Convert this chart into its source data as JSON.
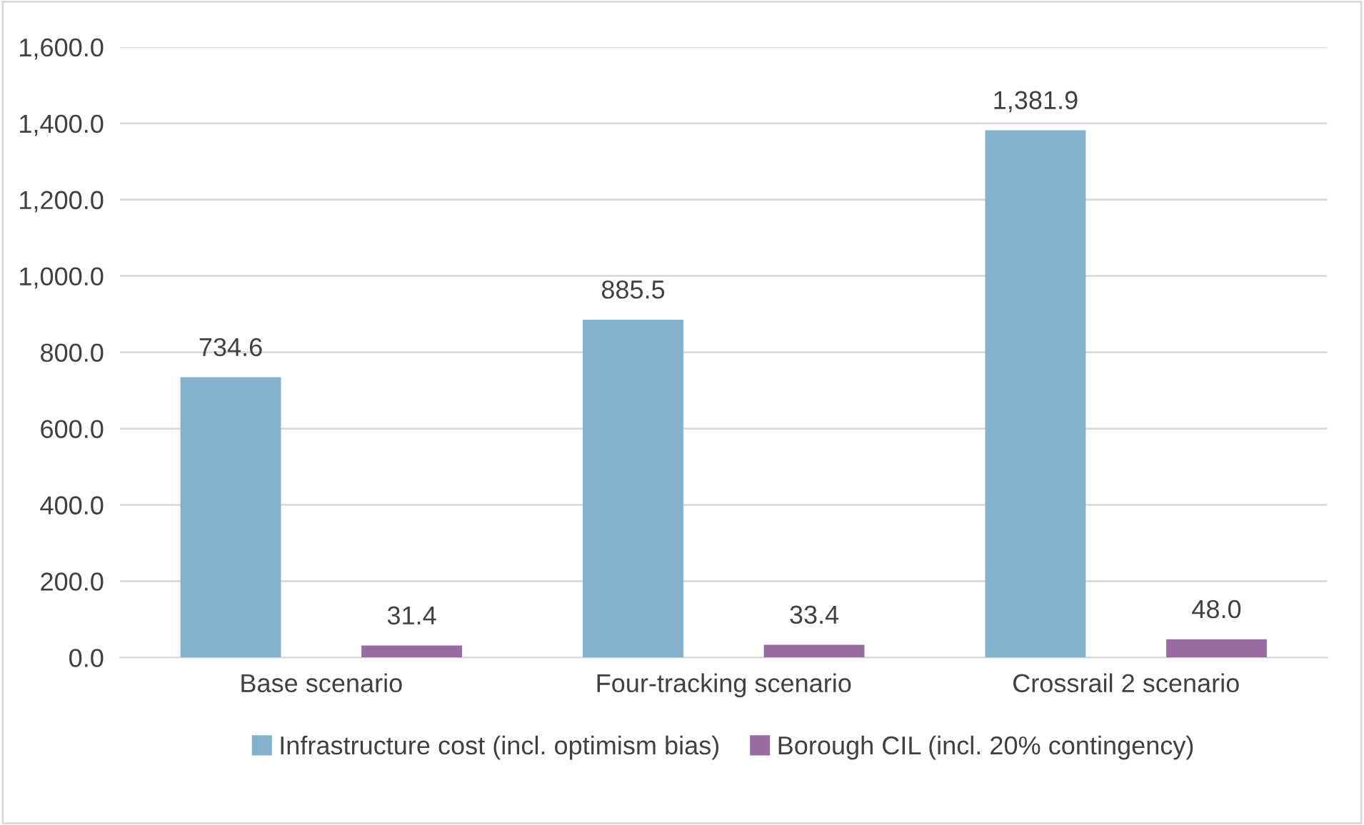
{
  "chart_data": {
    "type": "bar",
    "categories": [
      "Base scenario",
      "Four-tracking scenario",
      "Crossrail 2 scenario"
    ],
    "series": [
      {
        "name": "Infrastructure cost (incl. optimism bias)",
        "color": "#84b1cb",
        "values": [
          734.6,
          885.5,
          1381.9
        ],
        "value_labels": [
          "734.6",
          "885.5",
          "1,381.9"
        ]
      },
      {
        "name": "Borough CIL (incl. 20% contingency)",
        "color": "#9a6aa2",
        "values": [
          31.4,
          33.4,
          48.0
        ],
        "value_labels": [
          "31.4",
          "33.4",
          "48.0"
        ]
      }
    ],
    "ylim": [
      0,
      1600
    ],
    "yticks": [
      {
        "value": 0,
        "label": "0.0"
      },
      {
        "value": 200,
        "label": "200.0"
      },
      {
        "value": 400,
        "label": "400.0"
      },
      {
        "value": 600,
        "label": "600.0"
      },
      {
        "value": 800,
        "label": "800.0"
      },
      {
        "value": 1000,
        "label": "1,000.0"
      },
      {
        "value": 1200,
        "label": "1,200.0"
      },
      {
        "value": 1400,
        "label": "1,400.0"
      },
      {
        "value": 1600,
        "label": "1,600.0"
      }
    ],
    "grid": "y",
    "legend": "bottom"
  }
}
